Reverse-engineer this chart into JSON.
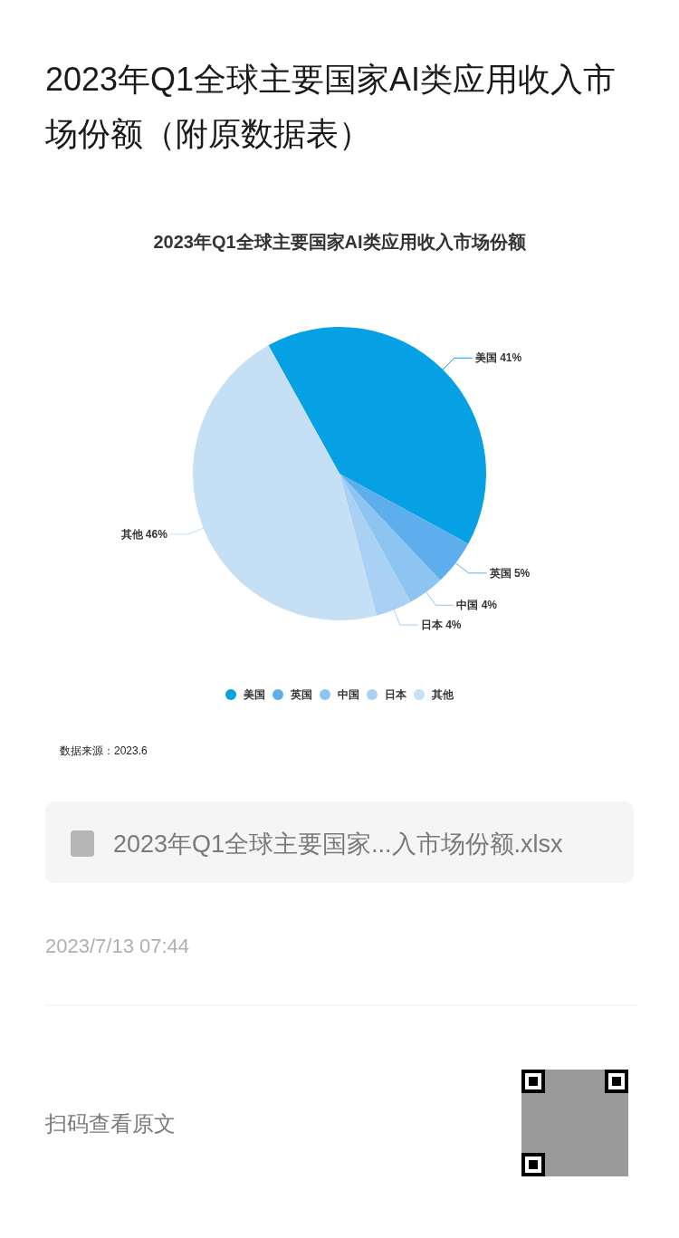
{
  "chart_data": {
    "type": "pie",
    "title": "2023年Q1全球主要国家AI类应用收入市场份额（附原数据表）",
    "subtitle": "2023年Q1全球主要国家AI类应用收入市场份额",
    "categories": [
      "美国",
      "英国",
      "中国",
      "日本",
      "其他"
    ],
    "values": [
      41,
      5,
      4,
      4,
      46
    ],
    "colors": [
      "#06a0e5",
      "#5caeec",
      "#8ec5f0",
      "#a9d1f4",
      "#c5dff5"
    ],
    "value_labels": [
      "41%",
      "5%",
      "4%",
      "4%",
      "46%"
    ],
    "legend": "bottom",
    "annotations": [
      "数据来源：2023.6",
      "2023年Q1全球主要国家...入市场份额.xlsx",
      "2023/7/13 07:44",
      "扫码查看原文"
    ]
  }
}
